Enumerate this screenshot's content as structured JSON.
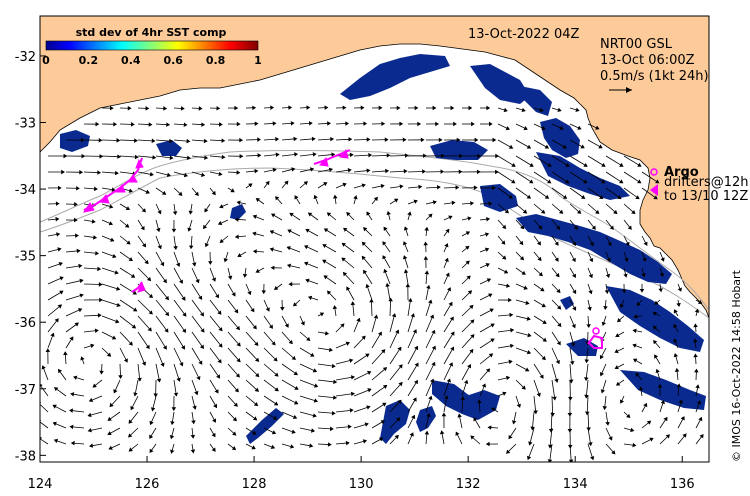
{
  "map": {
    "date_label": "13-Oct-2022 04Z",
    "info_lines": [
      "NRT00 GSL",
      "13-Oct 06:00Z",
      "0.5m/s (1kt 24h)"
    ],
    "argo_label": "Argo",
    "drifter_lines": [
      "drifters@12h",
      "to 13/10 12Z"
    ],
    "credit": "© IMOS 16-Oct-2022 14:58 Hobart",
    "legend": {
      "title": "std dev of 4hr SST comp",
      "ticks": [
        "0",
        "0.2",
        "0.4",
        "0.6",
        "0.8",
        "1"
      ],
      "range": [
        0,
        1
      ]
    },
    "x_ticks": [
      "124",
      "126",
      "128",
      "130",
      "132",
      "134",
      "136"
    ],
    "y_ticks": [
      "-32",
      "-33",
      "-34",
      "-35",
      "-36",
      "-37",
      "-38"
    ],
    "extent": {
      "lon": [
        124,
        136.5
      ],
      "lat": [
        -38.1,
        -31.4
      ]
    },
    "colors": {
      "land": "#fccb99",
      "ocean": "#ffffff",
      "sst_patch": "#0a2a8f",
      "drifter": "#ff00ff",
      "vector": "#000000",
      "shelf_contour": "#aaaaaa"
    }
  }
}
